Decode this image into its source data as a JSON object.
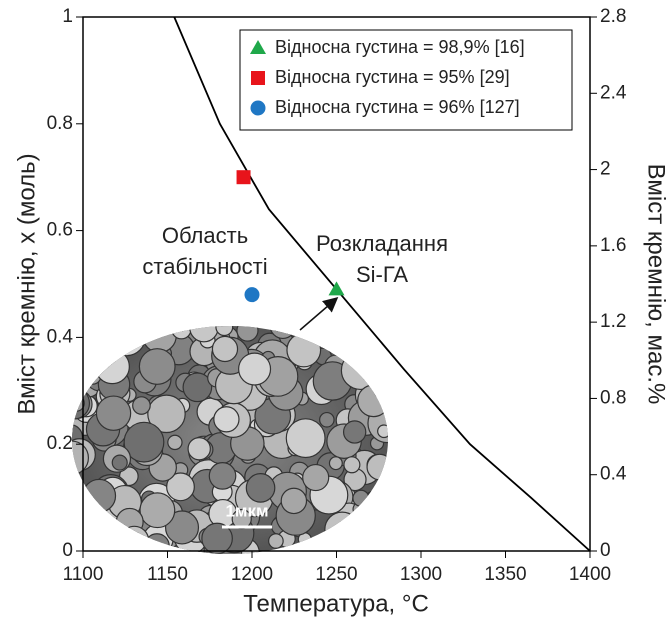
{
  "chart_data": {
    "type": "scatter",
    "xlabel": "Температура, °C",
    "ylabel": "Вміст кремнію, x (моль)",
    "y2label": "Вміст кремнію, мас.%",
    "xlim": [
      1100,
      1400
    ],
    "xticks": [
      1100,
      1150,
      1200,
      1250,
      1300,
      1350,
      1400
    ],
    "ylim": [
      0,
      1
    ],
    "yticks": [
      0,
      0.2,
      0.4,
      0.6,
      0.8,
      1
    ],
    "y2lim": [
      0,
      2.8
    ],
    "y2ticks": [
      0,
      0.4,
      0.8,
      1.2,
      1.6,
      2,
      2.4,
      2.8
    ],
    "series": [
      {
        "name": "Відносна густина = 98,9% [16]",
        "color": "#1fa84a",
        "marker": "triangle",
        "x": [
          1250
        ],
        "values": [
          0.49
        ]
      },
      {
        "name": "Відносна густина = 95% [29]",
        "color": "#e8141b",
        "marker": "square",
        "x": [
          1195
        ],
        "values": [
          0.7
        ]
      },
      {
        "name": "Відносна густина = 96% [127]",
        "color": "#1f77c4",
        "marker": "circle",
        "x": [
          1200
        ],
        "values": [
          0.48
        ]
      }
    ],
    "curve": {
      "color": "#000000",
      "x": [
        1154,
        1181,
        1210,
        1250,
        1290,
        1329,
        1365,
        1400
      ],
      "values": [
        1,
        0.8,
        0.64,
        0.49,
        0.34,
        0.2,
        0.1,
        0
      ]
    },
    "annotations": [
      "Область",
      "стабільності",
      "Розкладання",
      "Si-ГА",
      "1мкм"
    ]
  }
}
